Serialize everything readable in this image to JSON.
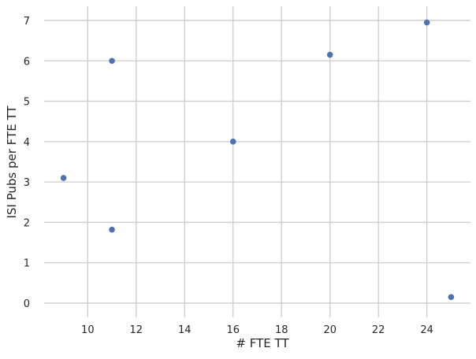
{
  "chart_data": {
    "type": "scatter",
    "title": "",
    "xlabel": "# FTE TT",
    "ylabel": "ISI Pubs per FTE TT",
    "xlim": [
      8.2,
      25.8
    ],
    "ylim": [
      -0.35,
      7.35
    ],
    "x_ticks": [
      10,
      12,
      14,
      16,
      18,
      20,
      22,
      24
    ],
    "y_ticks": [
      0,
      1,
      2,
      3,
      4,
      5,
      6,
      7
    ],
    "grid": true,
    "colors": {
      "point": "#4c72b0",
      "grid": "#cccccc",
      "text": "#262626"
    },
    "points": [
      {
        "x": 9,
        "y": 3.1
      },
      {
        "x": 11,
        "y": 6.0
      },
      {
        "x": 11,
        "y": 1.82
      },
      {
        "x": 16,
        "y": 4.0
      },
      {
        "x": 20,
        "y": 6.15
      },
      {
        "x": 24,
        "y": 6.95
      },
      {
        "x": 25,
        "y": 0.15
      }
    ]
  }
}
